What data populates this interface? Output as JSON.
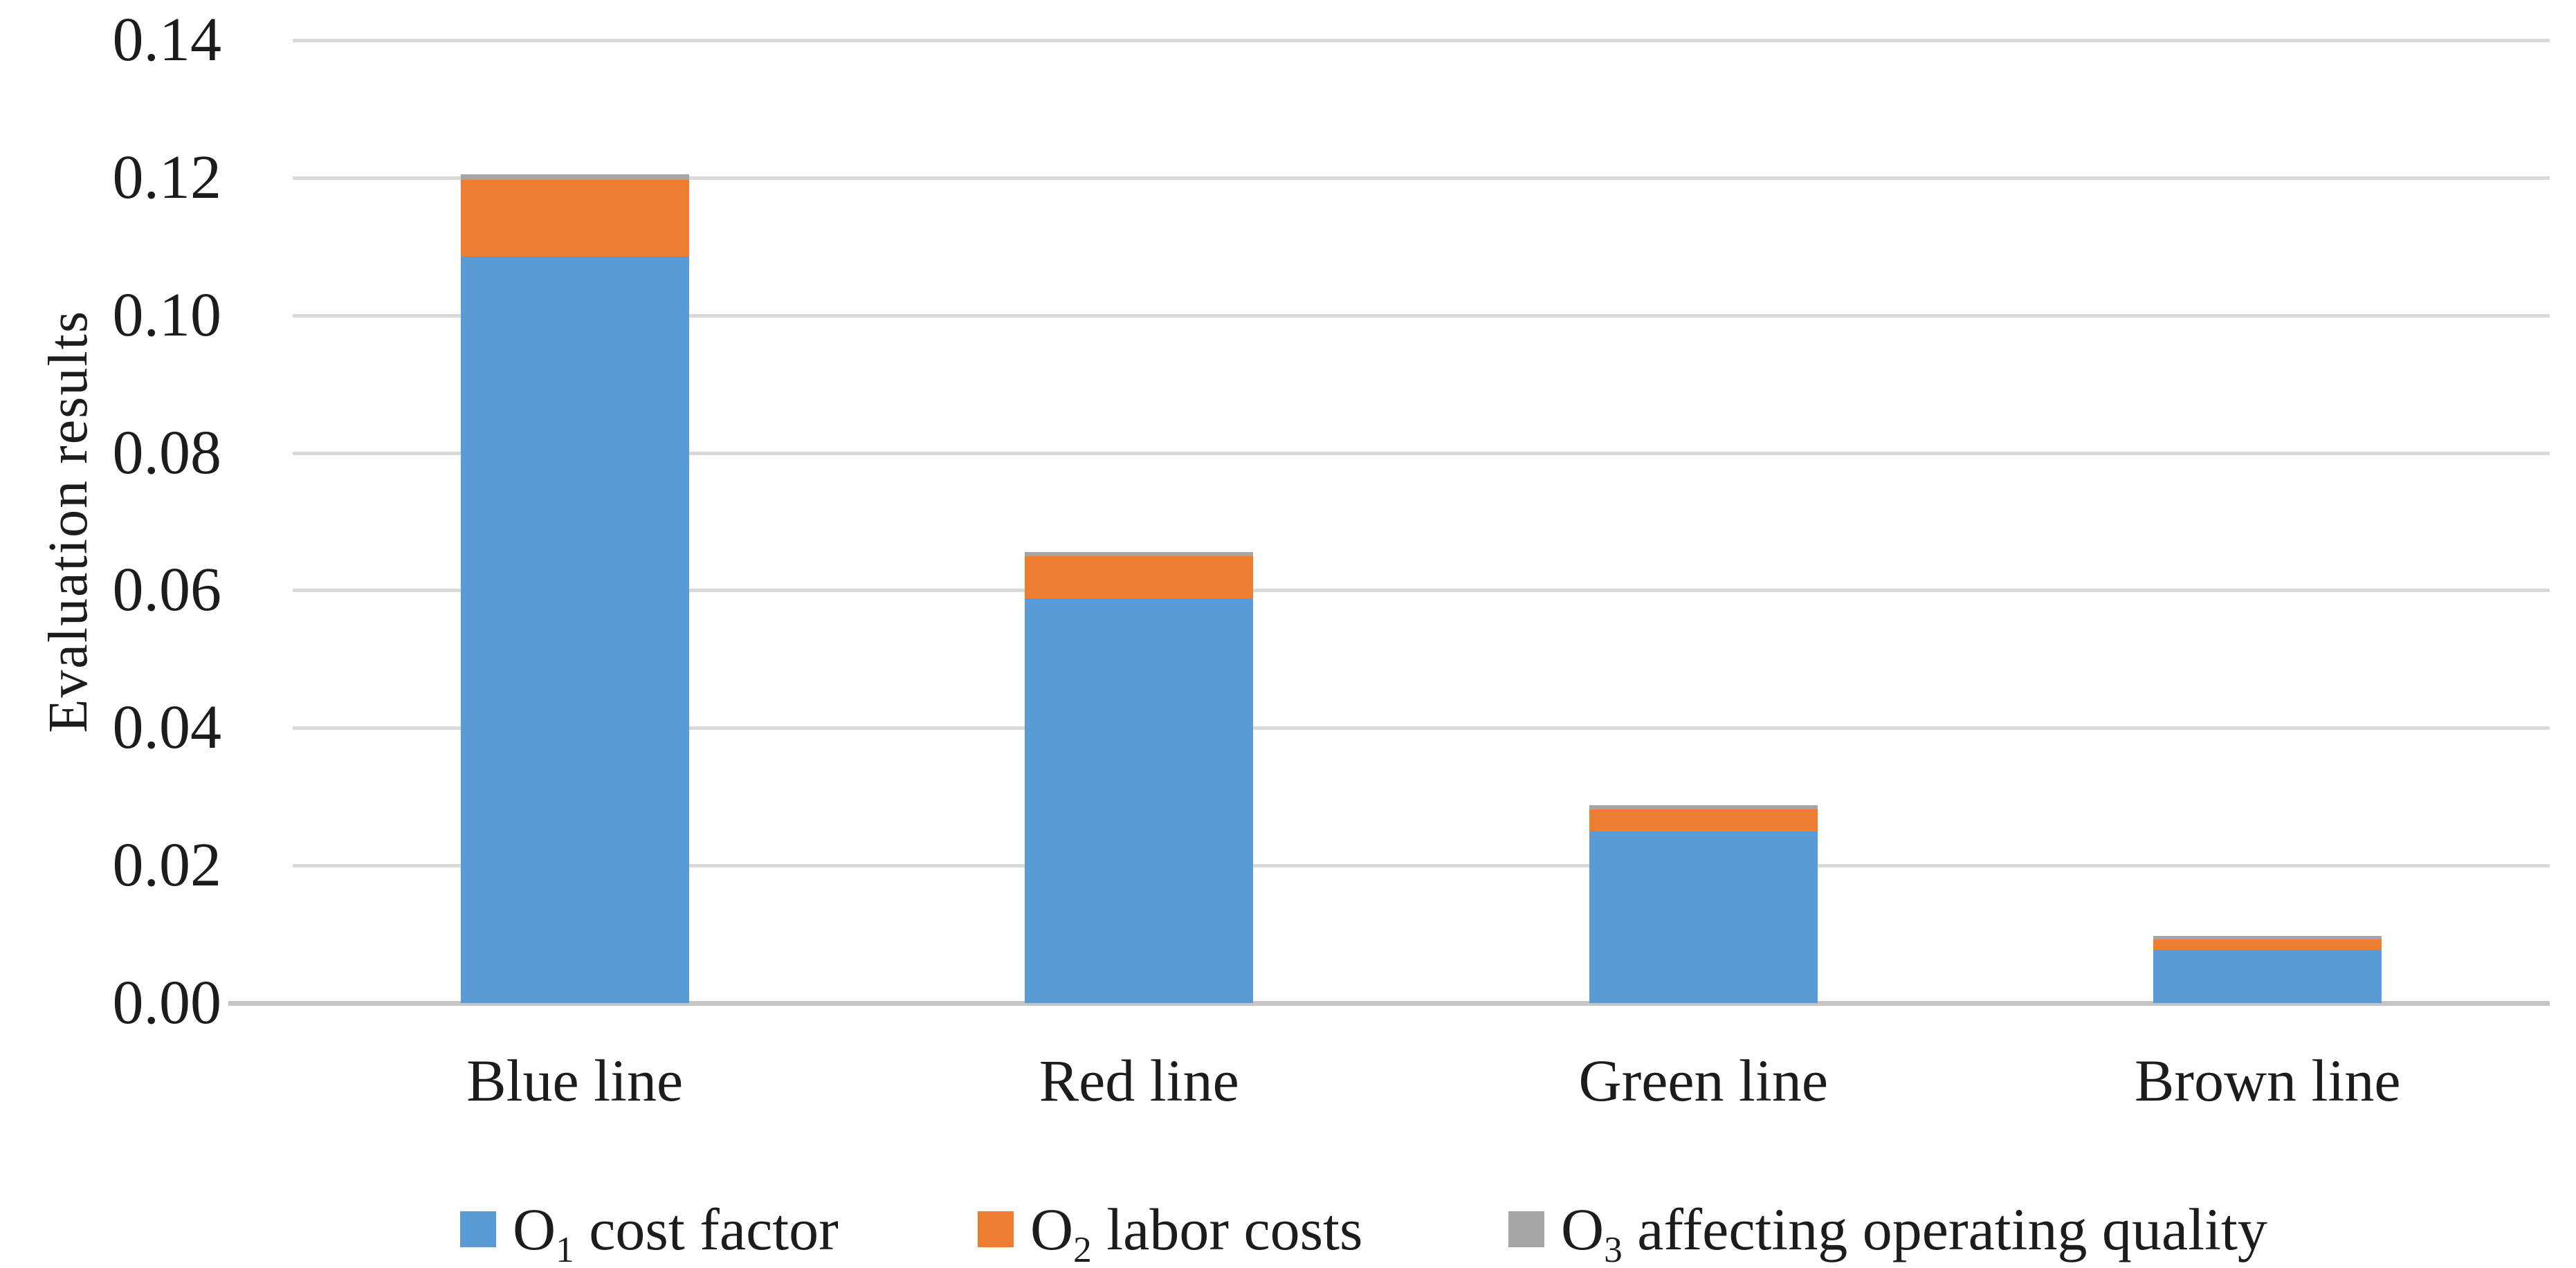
{
  "chart_data": {
    "type": "bar",
    "stacked": true,
    "title": "",
    "xlabel": "",
    "ylabel": "Evaluation results",
    "categories": [
      "Blue line",
      "Red line",
      "Green line",
      "Brown line"
    ],
    "series": [
      {
        "name": "O₁ cost factor",
        "color": "#5B9BD5",
        "values": [
          0.1085,
          0.0588,
          0.0249,
          0.0077
        ]
      },
      {
        "name": "O₂ labor costs",
        "color": "#ED7D31",
        "values": [
          0.0112,
          0.0061,
          0.0032,
          0.0015
        ]
      },
      {
        "name": "O₃ affecting operating quality",
        "color": "#A5A5A5",
        "values": [
          0.0008,
          0.0006,
          0.0006,
          0.0005
        ]
      }
    ],
    "totals": [
      0.1205,
      0.0655,
      0.0287,
      0.0097
    ],
    "yticks": [
      "0.00",
      "0.02",
      "0.04",
      "0.06",
      "0.08",
      "0.10",
      "0.12",
      "0.14"
    ],
    "ylim": [
      0,
      0.14
    ],
    "grid": true,
    "legend_position": "bottom"
  },
  "axes": {
    "y_title": "Evaluation results"
  },
  "legend": {
    "items": [
      {
        "prefix": "O",
        "sub": "1",
        "label": " cost factor",
        "color": "#5B9BD5"
      },
      {
        "prefix": "O",
        "sub": "2",
        "label": " labor costs",
        "color": "#ED7D31"
      },
      {
        "prefix": "O",
        "sub": "3",
        "label": " affecting operating quality",
        "color": "#A5A5A5"
      }
    ]
  },
  "colors": {
    "series_blue": "#5B9BD5",
    "series_orange": "#ED7D31",
    "series_gray": "#A5A5A5",
    "gridline": "#D9D9D9",
    "axis_line": "#C5C5C5",
    "text": "#1C1C1C",
    "background": "#FFFFFF"
  }
}
